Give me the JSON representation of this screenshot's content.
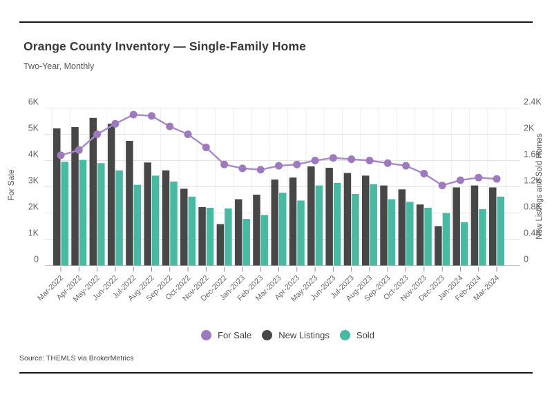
{
  "header": {
    "title": "Orange County Inventory — Single-Family Home",
    "subtitle": "Two-Year, Monthly"
  },
  "footer": {
    "source": "Source: THEMLS via BrokerMetrics"
  },
  "legend": {
    "items": [
      {
        "label": "For Sale",
        "color": "#9d7abe"
      },
      {
        "label": "New Listings",
        "color": "#474747"
      },
      {
        "label": "Sold",
        "color": "#4ab9a4"
      }
    ]
  },
  "chart_data": {
    "type": "combo-bar-line",
    "categories": [
      "Mar-2022",
      "Apr-2022",
      "May-2022",
      "Jun-2022",
      "Jul-2022",
      "Aug-2022",
      "Sep-2022",
      "Oct-2022",
      "Nov-2022",
      "Dec-2022",
      "Jan-2023",
      "Feb-2023",
      "Mar-2023",
      "Apr-2023",
      "May-2023",
      "Jun-2023",
      "Jul-2023",
      "Aug-2023",
      "Sep-2023",
      "Oct-2023",
      "Nov-2023",
      "Dec-2023",
      "Jan-2024",
      "Feb-2024",
      "Mar-2024"
    ],
    "series": [
      {
        "name": "For Sale",
        "type": "line",
        "axis": "left",
        "units": "thousands",
        "color": "#a98bc9",
        "dot_color": "#9d7abe",
        "values_k": [
          4.2,
          4.4,
          5.0,
          5.4,
          5.75,
          5.7,
          5.3,
          5.0,
          4.5,
          3.85,
          3.7,
          3.65,
          3.8,
          3.85,
          4.0,
          4.1,
          4.05,
          4.0,
          3.9,
          3.8,
          3.5,
          3.05,
          3.25,
          3.35,
          3.3
        ]
      },
      {
        "name": "New Listings",
        "type": "bar",
        "axis": "right",
        "units": "thousands",
        "color": "#474747",
        "values_k": [
          2.09,
          2.11,
          2.25,
          2.16,
          1.9,
          1.57,
          1.45,
          1.17,
          0.89,
          0.63,
          1.01,
          1.08,
          1.31,
          1.34,
          1.51,
          1.49,
          1.41,
          1.37,
          1.22,
          1.16,
          0.93,
          0.6,
          1.19,
          1.22,
          1.19
        ]
      },
      {
        "name": "Sold",
        "type": "bar",
        "axis": "right",
        "units": "thousands",
        "color": "#4ab9a4",
        "values_k": [
          1.58,
          1.61,
          1.56,
          1.45,
          1.23,
          1.37,
          1.28,
          1.05,
          0.88,
          0.87,
          0.71,
          0.77,
          1.11,
          0.99,
          1.22,
          1.26,
          1.09,
          1.24,
          1.01,
          0.97,
          0.88,
          0.8,
          0.66,
          0.86,
          1.05
        ]
      }
    ],
    "left_axis": {
      "title": "For Sale",
      "ticks": [
        "0",
        "1K",
        "2K",
        "3K",
        "4K",
        "5K",
        "6K"
      ],
      "min_k": 0,
      "max_k": 6
    },
    "right_axis": {
      "title": "New Listings and Sold Homes",
      "ticks": [
        "0",
        "0.4K",
        "0.8K",
        "1.2K",
        "1.6K",
        "2K",
        "2.4K"
      ],
      "min_k": 0,
      "max_k": 2.4
    },
    "grid": "horizontal",
    "legend_position": "bottom"
  }
}
